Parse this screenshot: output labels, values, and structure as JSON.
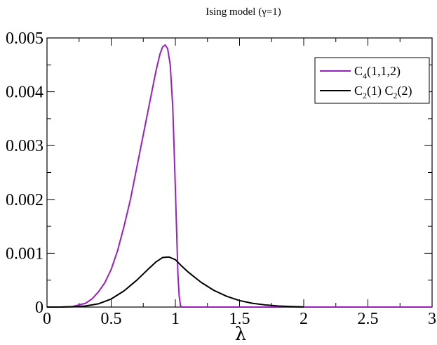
{
  "chart_data": {
    "type": "line",
    "title": "Ising model (γ=1)",
    "xlabel": "λ",
    "ylabel": "",
    "xlim": [
      0,
      3
    ],
    "ylim": [
      0,
      0.005
    ],
    "x_ticks": [
      "0",
      "0.5",
      "1",
      "1.5",
      "2",
      "2.5",
      "3"
    ],
    "y_ticks": [
      "0",
      "0.001",
      "0.002",
      "0.003",
      "0.004",
      "0.005"
    ],
    "grid": false,
    "legend_position": "top-right",
    "legend": [
      {
        "main": "C",
        "sub": "4",
        "rest": "(1,1,2)"
      },
      {
        "main": "C",
        "sub": "2",
        "rest": "(1) C",
        "sub2": "2",
        "rest2": "(2)"
      }
    ],
    "series": [
      {
        "name": "C4(1,1,2)",
        "color": "#9a1fbf",
        "x": [
          0.05,
          0.1,
          0.2,
          0.3,
          0.35,
          0.4,
          0.45,
          0.5,
          0.55,
          0.6,
          0.65,
          0.7,
          0.75,
          0.8,
          0.85,
          0.88,
          0.9,
          0.92,
          0.94,
          0.96,
          0.98,
          1.0,
          1.02,
          1.03,
          1.04,
          1.05,
          1.5,
          2.0,
          2.5,
          3.0
        ],
        "y": [
          0,
          0,
          1e-05,
          7e-05,
          0.00015,
          0.00028,
          0.00045,
          0.0007,
          0.00105,
          0.0015,
          0.002,
          0.0026,
          0.0032,
          0.0038,
          0.0044,
          0.0047,
          0.00483,
          0.00487,
          0.0048,
          0.0045,
          0.0037,
          0.0022,
          0.0006,
          0.0002,
          3e-05,
          0,
          0,
          0,
          0,
          0
        ]
      },
      {
        "name": "C2(1) C2(2)",
        "color": "#000000",
        "x": [
          0.0,
          0.1,
          0.2,
          0.3,
          0.4,
          0.5,
          0.6,
          0.7,
          0.8,
          0.85,
          0.9,
          0.95,
          1.0,
          1.05,
          1.1,
          1.2,
          1.3,
          1.4,
          1.5,
          1.6,
          1.7,
          1.8,
          1.9,
          2.0
        ],
        "y": [
          0,
          0,
          5e-06,
          2e-05,
          6e-05,
          0.00015,
          0.0003,
          0.0005,
          0.00073,
          0.00084,
          0.00092,
          0.00093,
          0.00088,
          0.00076,
          0.00065,
          0.00046,
          0.00031,
          0.0002,
          0.00012,
          7e-05,
          4e-05,
          2e-05,
          1e-05,
          3e-06
        ]
      }
    ]
  }
}
